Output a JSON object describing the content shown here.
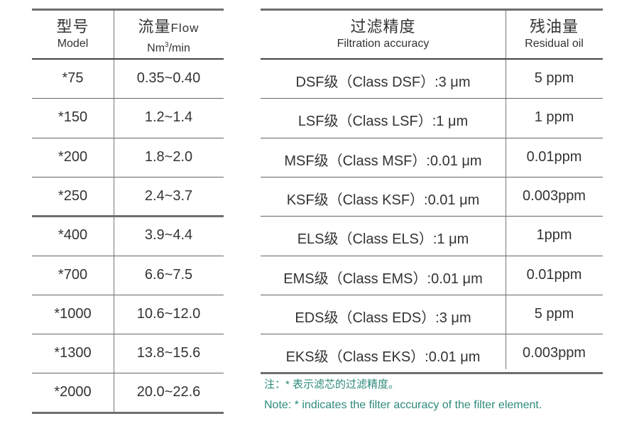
{
  "left_table": {
    "headers": {
      "model_zh": "型号",
      "model_en": "Model",
      "flow_zh": "流量",
      "flow_en_inline": "Flow",
      "flow_unit_pre": "Nm",
      "flow_unit_sup": "3",
      "flow_unit_post": "/min"
    },
    "rows": [
      {
        "model": "*75",
        "flow": "0.35~0.40"
      },
      {
        "model": "*150",
        "flow": "1.2~1.4"
      },
      {
        "model": "*200",
        "flow": "1.8~2.0"
      },
      {
        "model": "*250",
        "flow": "2.4~3.7"
      },
      {
        "model": "*400",
        "flow": "3.9~4.4"
      },
      {
        "model": "*700",
        "flow": "6.6~7.5"
      },
      {
        "model": "*1000",
        "flow": "10.6~12.0"
      },
      {
        "model": "*1300",
        "flow": "13.8~15.6"
      },
      {
        "model": "*2000",
        "flow": "20.0~22.6"
      }
    ]
  },
  "right_table": {
    "headers": {
      "accuracy_zh": "过滤精度",
      "accuracy_en": "Filtration accuracy",
      "residual_zh": "残油量",
      "residual_en": "Residual oil"
    },
    "rows": [
      {
        "accuracy": "DSF级（Class DSF）:3 μm",
        "residual": "5 ppm"
      },
      {
        "accuracy": "LSF级（Class LSF）:1 μm",
        "residual": "1 ppm"
      },
      {
        "accuracy": "MSF级（Class MSF）:0.01 μm",
        "residual": "0.01ppm"
      },
      {
        "accuracy": "KSF级（Class KSF）:0.01 μm",
        "residual": "0.003ppm"
      },
      {
        "accuracy": "ELS级（Class ELS）:1 μm",
        "residual": "1ppm"
      },
      {
        "accuracy": "EMS级（Class EMS）:0.01 μm",
        "residual": "0.01ppm"
      },
      {
        "accuracy": "EDS级（Class EDS）:3 μm",
        "residual": "5 ppm"
      },
      {
        "accuracy": "EKS级（Class EKS）:0.01 μm",
        "residual": "0.003ppm"
      }
    ]
  },
  "notes": {
    "zh": "注：* 表示滤芯的过滤精度。",
    "en": "Note: * indicates the filter accuracy of the filter element."
  },
  "colors": {
    "text": "#333333",
    "lines": "#666666",
    "note": "#2e8a7c"
  }
}
